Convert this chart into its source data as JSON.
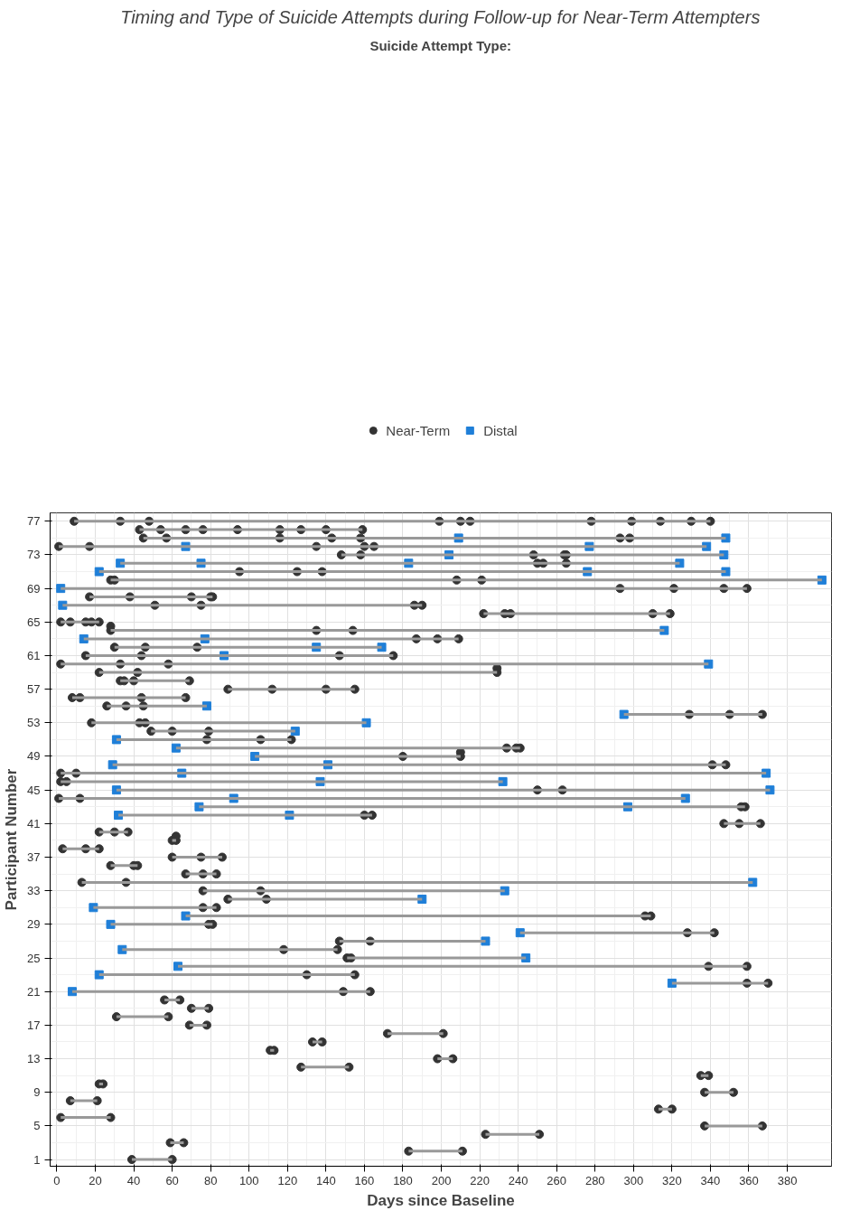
{
  "chart_data": {
    "type": "scatter",
    "title": "Timing and Type of Suicide Attempts during Follow-up for Near-Term Attempters",
    "xlabel": "Days since Baseline",
    "ylabel": "Participant Number",
    "legend_title": "Suicide Attempt Type:",
    "legend": "top",
    "grid": true,
    "xlim": [
      -3.5,
      403
    ],
    "xticks": [
      0,
      20,
      40,
      60,
      80,
      100,
      120,
      140,
      160,
      180,
      200,
      220,
      240,
      260,
      280,
      300,
      320,
      340,
      360,
      380
    ],
    "ylim": [
      0.2,
      78
    ],
    "yticks": [
      1,
      5,
      9,
      13,
      17,
      21,
      25,
      29,
      33,
      37,
      41,
      45,
      49,
      53,
      57,
      61,
      65,
      69,
      73,
      77
    ],
    "series": [
      {
        "type": "line",
        "color": "#999999",
        "x": [
          9,
          340
        ],
        "values": [
          77,
          77
        ]
      },
      {
        "type": "line",
        "color": "#999999",
        "x": [
          43,
          159
        ],
        "values": [
          76,
          76
        ]
      },
      {
        "type": "line",
        "color": "#999999",
        "x": [
          45,
          348
        ],
        "values": [
          75,
          75
        ]
      },
      {
        "type": "line",
        "color": "#999999",
        "x": [
          1,
          338
        ],
        "values": [
          74,
          74
        ]
      },
      {
        "type": "line",
        "color": "#999999",
        "x": [
          148,
          347
        ],
        "values": [
          73,
          73
        ]
      },
      {
        "type": "line",
        "color": "#999999",
        "x": [
          33,
          324
        ],
        "values": [
          72,
          72
        ]
      },
      {
        "type": "line",
        "color": "#999999",
        "x": [
          22,
          348
        ],
        "values": [
          71,
          71
        ]
      },
      {
        "type": "line",
        "color": "#999999",
        "x": [
          28,
          398
        ],
        "values": [
          70,
          70
        ]
      },
      {
        "type": "line",
        "color": "#999999",
        "x": [
          2,
          359
        ],
        "values": [
          69,
          69
        ]
      },
      {
        "type": "line",
        "color": "#999999",
        "x": [
          17,
          81
        ],
        "values": [
          68,
          68
        ]
      },
      {
        "type": "line",
        "color": "#999999",
        "x": [
          3,
          190
        ],
        "values": [
          67,
          67
        ]
      },
      {
        "type": "line",
        "color": "#999999",
        "x": [
          222,
          319
        ],
        "values": [
          66,
          66
        ]
      },
      {
        "type": "line",
        "color": "#999999",
        "x": [
          2,
          22
        ],
        "values": [
          65,
          65
        ]
      },
      {
        "type": "line",
        "color": "#999999",
        "x": [
          28,
          316
        ],
        "values": [
          64,
          64
        ]
      },
      {
        "type": "line",
        "color": "#999999",
        "x": [
          14,
          209
        ],
        "values": [
          63,
          63
        ]
      },
      {
        "type": "line",
        "color": "#999999",
        "x": [
          30,
          169
        ],
        "values": [
          62,
          62
        ]
      },
      {
        "type": "line",
        "color": "#999999",
        "x": [
          15,
          175
        ],
        "values": [
          61,
          61
        ]
      },
      {
        "type": "line",
        "color": "#999999",
        "x": [
          2,
          339
        ],
        "values": [
          60,
          60
        ]
      },
      {
        "type": "line",
        "color": "#999999",
        "x": [
          22,
          229
        ],
        "values": [
          59,
          59
        ]
      },
      {
        "type": "line",
        "color": "#999999",
        "x": [
          33,
          69
        ],
        "values": [
          58,
          58
        ]
      },
      {
        "type": "line",
        "color": "#999999",
        "x": [
          89,
          155
        ],
        "values": [
          57,
          57
        ]
      },
      {
        "type": "line",
        "color": "#999999",
        "x": [
          8,
          67
        ],
        "values": [
          56,
          56
        ]
      },
      {
        "type": "line",
        "color": "#999999",
        "x": [
          26,
          78
        ],
        "values": [
          55,
          55
        ]
      },
      {
        "type": "line",
        "color": "#999999",
        "x": [
          295,
          367
        ],
        "values": [
          54,
          54
        ]
      },
      {
        "type": "line",
        "color": "#999999",
        "x": [
          18,
          161
        ],
        "values": [
          53,
          53
        ]
      },
      {
        "type": "line",
        "color": "#999999",
        "x": [
          49,
          124
        ],
        "values": [
          52,
          52
        ]
      },
      {
        "type": "line",
        "color": "#999999",
        "x": [
          31,
          122
        ],
        "values": [
          51,
          51
        ]
      },
      {
        "type": "line",
        "color": "#999999",
        "x": [
          62,
          241
        ],
        "values": [
          50,
          50
        ]
      },
      {
        "type": "line",
        "color": "#999999",
        "x": [
          103,
          210
        ],
        "values": [
          49,
          49
        ]
      },
      {
        "type": "line",
        "color": "#999999",
        "x": [
          29,
          348
        ],
        "values": [
          48,
          48
        ]
      },
      {
        "type": "line",
        "color": "#999999",
        "x": [
          2,
          369
        ],
        "values": [
          47,
          47
        ]
      },
      {
        "type": "line",
        "color": "#999999",
        "x": [
          2,
          232
        ],
        "values": [
          46,
          46
        ]
      },
      {
        "type": "line",
        "color": "#999999",
        "x": [
          31,
          371
        ],
        "values": [
          45,
          45
        ]
      },
      {
        "type": "line",
        "color": "#999999",
        "x": [
          1,
          327
        ],
        "values": [
          44,
          44
        ]
      },
      {
        "type": "line",
        "color": "#999999",
        "x": [
          74,
          358
        ],
        "values": [
          43,
          43
        ]
      },
      {
        "type": "line",
        "color": "#999999",
        "x": [
          32,
          164
        ],
        "values": [
          42,
          42
        ]
      },
      {
        "type": "line",
        "color": "#999999",
        "x": [
          347,
          366
        ],
        "values": [
          41,
          41
        ]
      },
      {
        "type": "line",
        "color": "#999999",
        "x": [
          22,
          37
        ],
        "values": [
          40,
          40
        ]
      },
      {
        "type": "line",
        "color": "#999999",
        "x": [
          60,
          62
        ],
        "values": [
          39,
          39
        ]
      },
      {
        "type": "line",
        "color": "#999999",
        "x": [
          3,
          22
        ],
        "values": [
          38,
          38
        ]
      },
      {
        "type": "line",
        "color": "#999999",
        "x": [
          60,
          86
        ],
        "values": [
          37,
          37
        ]
      },
      {
        "type": "line",
        "color": "#999999",
        "x": [
          28,
          42
        ],
        "values": [
          36,
          36
        ]
      },
      {
        "type": "line",
        "color": "#999999",
        "x": [
          67,
          83
        ],
        "values": [
          35,
          35
        ]
      },
      {
        "type": "line",
        "color": "#999999",
        "x": [
          13,
          362
        ],
        "values": [
          34,
          34
        ]
      },
      {
        "type": "line",
        "color": "#999999",
        "x": [
          76,
          233
        ],
        "values": [
          33,
          33
        ]
      },
      {
        "type": "line",
        "color": "#999999",
        "x": [
          89,
          190
        ],
        "values": [
          32,
          32
        ]
      },
      {
        "type": "line",
        "color": "#999999",
        "x": [
          19,
          83
        ],
        "values": [
          31,
          31
        ]
      },
      {
        "type": "line",
        "color": "#999999",
        "x": [
          67,
          309
        ],
        "values": [
          30,
          30
        ]
      },
      {
        "type": "line",
        "color": "#999999",
        "x": [
          28,
          81
        ],
        "values": [
          29,
          29
        ]
      },
      {
        "type": "line",
        "color": "#999999",
        "x": [
          241,
          342
        ],
        "values": [
          28,
          28
        ]
      },
      {
        "type": "line",
        "color": "#999999",
        "x": [
          147,
          223
        ],
        "values": [
          27,
          27
        ]
      },
      {
        "type": "line",
        "color": "#999999",
        "x": [
          34,
          146
        ],
        "values": [
          26,
          26
        ]
      },
      {
        "type": "line",
        "color": "#999999",
        "x": [
          151,
          244
        ],
        "values": [
          25,
          25
        ]
      },
      {
        "type": "line",
        "color": "#999999",
        "x": [
          63,
          359
        ],
        "values": [
          24,
          24
        ]
      },
      {
        "type": "line",
        "color": "#999999",
        "x": [
          22,
          155
        ],
        "values": [
          23,
          23
        ]
      },
      {
        "type": "line",
        "color": "#999999",
        "x": [
          320,
          370
        ],
        "values": [
          22,
          22
        ]
      },
      {
        "type": "line",
        "color": "#999999",
        "x": [
          8,
          163
        ],
        "values": [
          21,
          21
        ]
      },
      {
        "type": "line",
        "color": "#999999",
        "x": [
          56,
          64
        ],
        "values": [
          20,
          20
        ]
      },
      {
        "type": "line",
        "color": "#999999",
        "x": [
          70,
          79
        ],
        "values": [
          19,
          19
        ]
      },
      {
        "type": "line",
        "color": "#999999",
        "x": [
          31,
          58
        ],
        "values": [
          18,
          18
        ]
      },
      {
        "type": "line",
        "color": "#999999",
        "x": [
          69,
          78
        ],
        "values": [
          17,
          17
        ]
      },
      {
        "type": "line",
        "color": "#999999",
        "x": [
          172,
          201
        ],
        "values": [
          16,
          16
        ]
      },
      {
        "type": "line",
        "color": "#999999",
        "x": [
          133,
          138
        ],
        "values": [
          15,
          15
        ]
      },
      {
        "type": "line",
        "color": "#999999",
        "x": [
          111,
          113
        ],
        "values": [
          14,
          14
        ]
      },
      {
        "type": "line",
        "color": "#999999",
        "x": [
          198,
          206
        ],
        "values": [
          13,
          13
        ]
      },
      {
        "type": "line",
        "color": "#999999",
        "x": [
          127,
          152
        ],
        "values": [
          12,
          12
        ]
      },
      {
        "type": "line",
        "color": "#999999",
        "x": [
          335,
          339
        ],
        "values": [
          11,
          11
        ]
      },
      {
        "type": "line",
        "color": "#999999",
        "x": [
          22,
          24
        ],
        "values": [
          10,
          10
        ]
      },
      {
        "type": "line",
        "color": "#999999",
        "x": [
          337,
          352
        ],
        "values": [
          9,
          9
        ]
      },
      {
        "type": "line",
        "color": "#999999",
        "x": [
          7,
          21
        ],
        "values": [
          8,
          8
        ]
      },
      {
        "type": "line",
        "color": "#999999",
        "x": [
          313,
          320
        ],
        "values": [
          7,
          7
        ]
      },
      {
        "type": "line",
        "color": "#999999",
        "x": [
          2,
          28
        ],
        "values": [
          6,
          6
        ]
      },
      {
        "type": "line",
        "color": "#999999",
        "x": [
          337,
          367
        ],
        "values": [
          5,
          5
        ]
      },
      {
        "type": "line",
        "color": "#999999",
        "x": [
          223,
          251
        ],
        "values": [
          4,
          4
        ]
      },
      {
        "type": "line",
        "color": "#999999",
        "x": [
          59,
          66
        ],
        "values": [
          3,
          3
        ]
      },
      {
        "type": "line",
        "color": "#999999",
        "x": [
          183,
          211
        ],
        "values": [
          2,
          2
        ]
      },
      {
        "type": "line",
        "color": "#999999",
        "x": [
          39,
          60
        ],
        "values": [
          1,
          1
        ]
      },
      {
        "name": "Near-Term",
        "color": "#333333",
        "marker": "circle",
        "x": [
          9,
          33,
          48,
          199,
          210,
          215,
          278,
          299,
          314,
          330,
          340,
          43,
          54,
          67,
          76,
          94,
          116,
          127,
          140,
          159,
          45,
          57,
          116,
          143,
          158,
          293,
          298,
          1,
          17,
          135,
          160,
          165,
          148,
          158,
          248,
          264,
          265,
          250,
          253,
          265,
          95,
          125,
          138,
          28,
          30,
          208,
          221,
          293,
          321,
          347,
          359,
          17,
          38,
          70,
          80,
          81,
          51,
          75,
          186,
          190,
          222,
          233,
          236,
          310,
          319,
          2,
          7,
          15,
          18,
          22,
          28,
          28,
          135,
          154,
          187,
          198,
          209,
          30,
          46,
          73,
          15,
          44,
          147,
          175,
          2,
          33,
          58,
          22,
          42,
          229,
          229,
          33,
          35,
          40,
          69,
          89,
          112,
          140,
          155,
          8,
          12,
          44,
          67,
          26,
          36,
          45,
          329,
          350,
          367,
          18,
          43,
          46,
          49,
          60,
          79,
          78,
          106,
          122,
          234,
          239,
          241,
          180,
          210,
          210,
          341,
          348,
          2,
          10,
          2,
          5,
          250,
          263,
          1,
          12,
          356,
          358,
          160,
          164,
          347,
          355,
          366,
          22,
          30,
          37,
          60,
          62,
          62,
          3,
          15,
          22,
          60,
          75,
          86,
          28,
          40,
          42,
          67,
          76,
          83,
          13,
          36,
          76,
          106,
          89,
          109,
          76,
          83,
          306,
          309,
          79,
          81,
          328,
          342,
          147,
          163,
          118,
          146,
          151,
          153,
          339,
          359,
          130,
          155,
          359,
          370,
          149,
          163,
          56,
          64,
          70,
          79,
          31,
          58,
          69,
          78,
          172,
          201,
          133,
          138,
          111,
          113,
          198,
          206,
          127,
          152,
          335,
          339,
          22,
          24,
          337,
          352,
          7,
          21,
          313,
          320,
          2,
          28,
          337,
          367,
          223,
          251,
          59,
          66,
          183,
          211,
          39,
          60
        ],
        "values": [
          77,
          77,
          77,
          77,
          77,
          77,
          77,
          77,
          77,
          77,
          77,
          76,
          76,
          76,
          76,
          76,
          76,
          76,
          76,
          76,
          75,
          75,
          75,
          75,
          75,
          75,
          75,
          74,
          74,
          74,
          74,
          74,
          73,
          73,
          73,
          73,
          73,
          72,
          72,
          72,
          71,
          71,
          71,
          70,
          70,
          70,
          70,
          69,
          69,
          69,
          69,
          68,
          68,
          68,
          68,
          68,
          67,
          67,
          67,
          67,
          66,
          66,
          66,
          66,
          66,
          65,
          65,
          65,
          65,
          65,
          64.5,
          64,
          64,
          64,
          63,
          63,
          63,
          62,
          62,
          62,
          61,
          61,
          61,
          61,
          60,
          60,
          60,
          59,
          59,
          59,
          59.5,
          58,
          58,
          58,
          58,
          57,
          57,
          57,
          57,
          56,
          56,
          56,
          56,
          55,
          55,
          55,
          54,
          54,
          54,
          53,
          53,
          53,
          52,
          52,
          52,
          51,
          51,
          51,
          50,
          50,
          50,
          49,
          49,
          49.5,
          48,
          48,
          47,
          47,
          46,
          46,
          45,
          45,
          44,
          44,
          43,
          43,
          42,
          42,
          41,
          41,
          41,
          40,
          40,
          40,
          39,
          39,
          39.5,
          38,
          38,
          38,
          37,
          37,
          37,
          36,
          36,
          36,
          35,
          35,
          35,
          34,
          34,
          33,
          33,
          32,
          32,
          31,
          31,
          30,
          30,
          29,
          29,
          28,
          28,
          27,
          27,
          26,
          26,
          25,
          25,
          24,
          24,
          23,
          23,
          22,
          22,
          21,
          21,
          20,
          20,
          19,
          19,
          18,
          18,
          17,
          17,
          16,
          16,
          15,
          15,
          14,
          14,
          13,
          13,
          12,
          12,
          11,
          11,
          10,
          10,
          9,
          9,
          8,
          8,
          7,
          7,
          6,
          6,
          5,
          5,
          4,
          4,
          3,
          3,
          2,
          2,
          1,
          1
        ]
      },
      {
        "name": "Distal",
        "color": "#1f7fd8",
        "marker": "square",
        "x": [
          209,
          348,
          67,
          277,
          338,
          204,
          347,
          33,
          75,
          183,
          324,
          22,
          276,
          348,
          398,
          2,
          3,
          316,
          14,
          77,
          135,
          169,
          87,
          339,
          78,
          295,
          161,
          124,
          31,
          62,
          103,
          29,
          141,
          65,
          369,
          137,
          232,
          31,
          371,
          92,
          327,
          74,
          297,
          32,
          121,
          362,
          233,
          190,
          19,
          67,
          28,
          241,
          223,
          34,
          244,
          63,
          22,
          320,
          8
        ],
        "values": [
          75,
          75,
          74,
          74,
          74,
          73,
          73,
          72,
          72,
          72,
          72,
          71,
          71,
          71,
          70,
          69,
          67,
          64,
          63,
          63,
          62,
          62,
          61,
          60,
          55,
          54,
          53,
          52,
          51,
          50,
          49,
          48,
          48,
          47,
          47,
          46,
          46,
          45,
          45,
          44,
          44,
          43,
          43,
          42,
          42,
          34,
          33,
          32,
          31,
          30,
          29,
          28,
          27,
          26,
          25,
          24,
          23,
          22,
          21
        ]
      }
    ]
  }
}
